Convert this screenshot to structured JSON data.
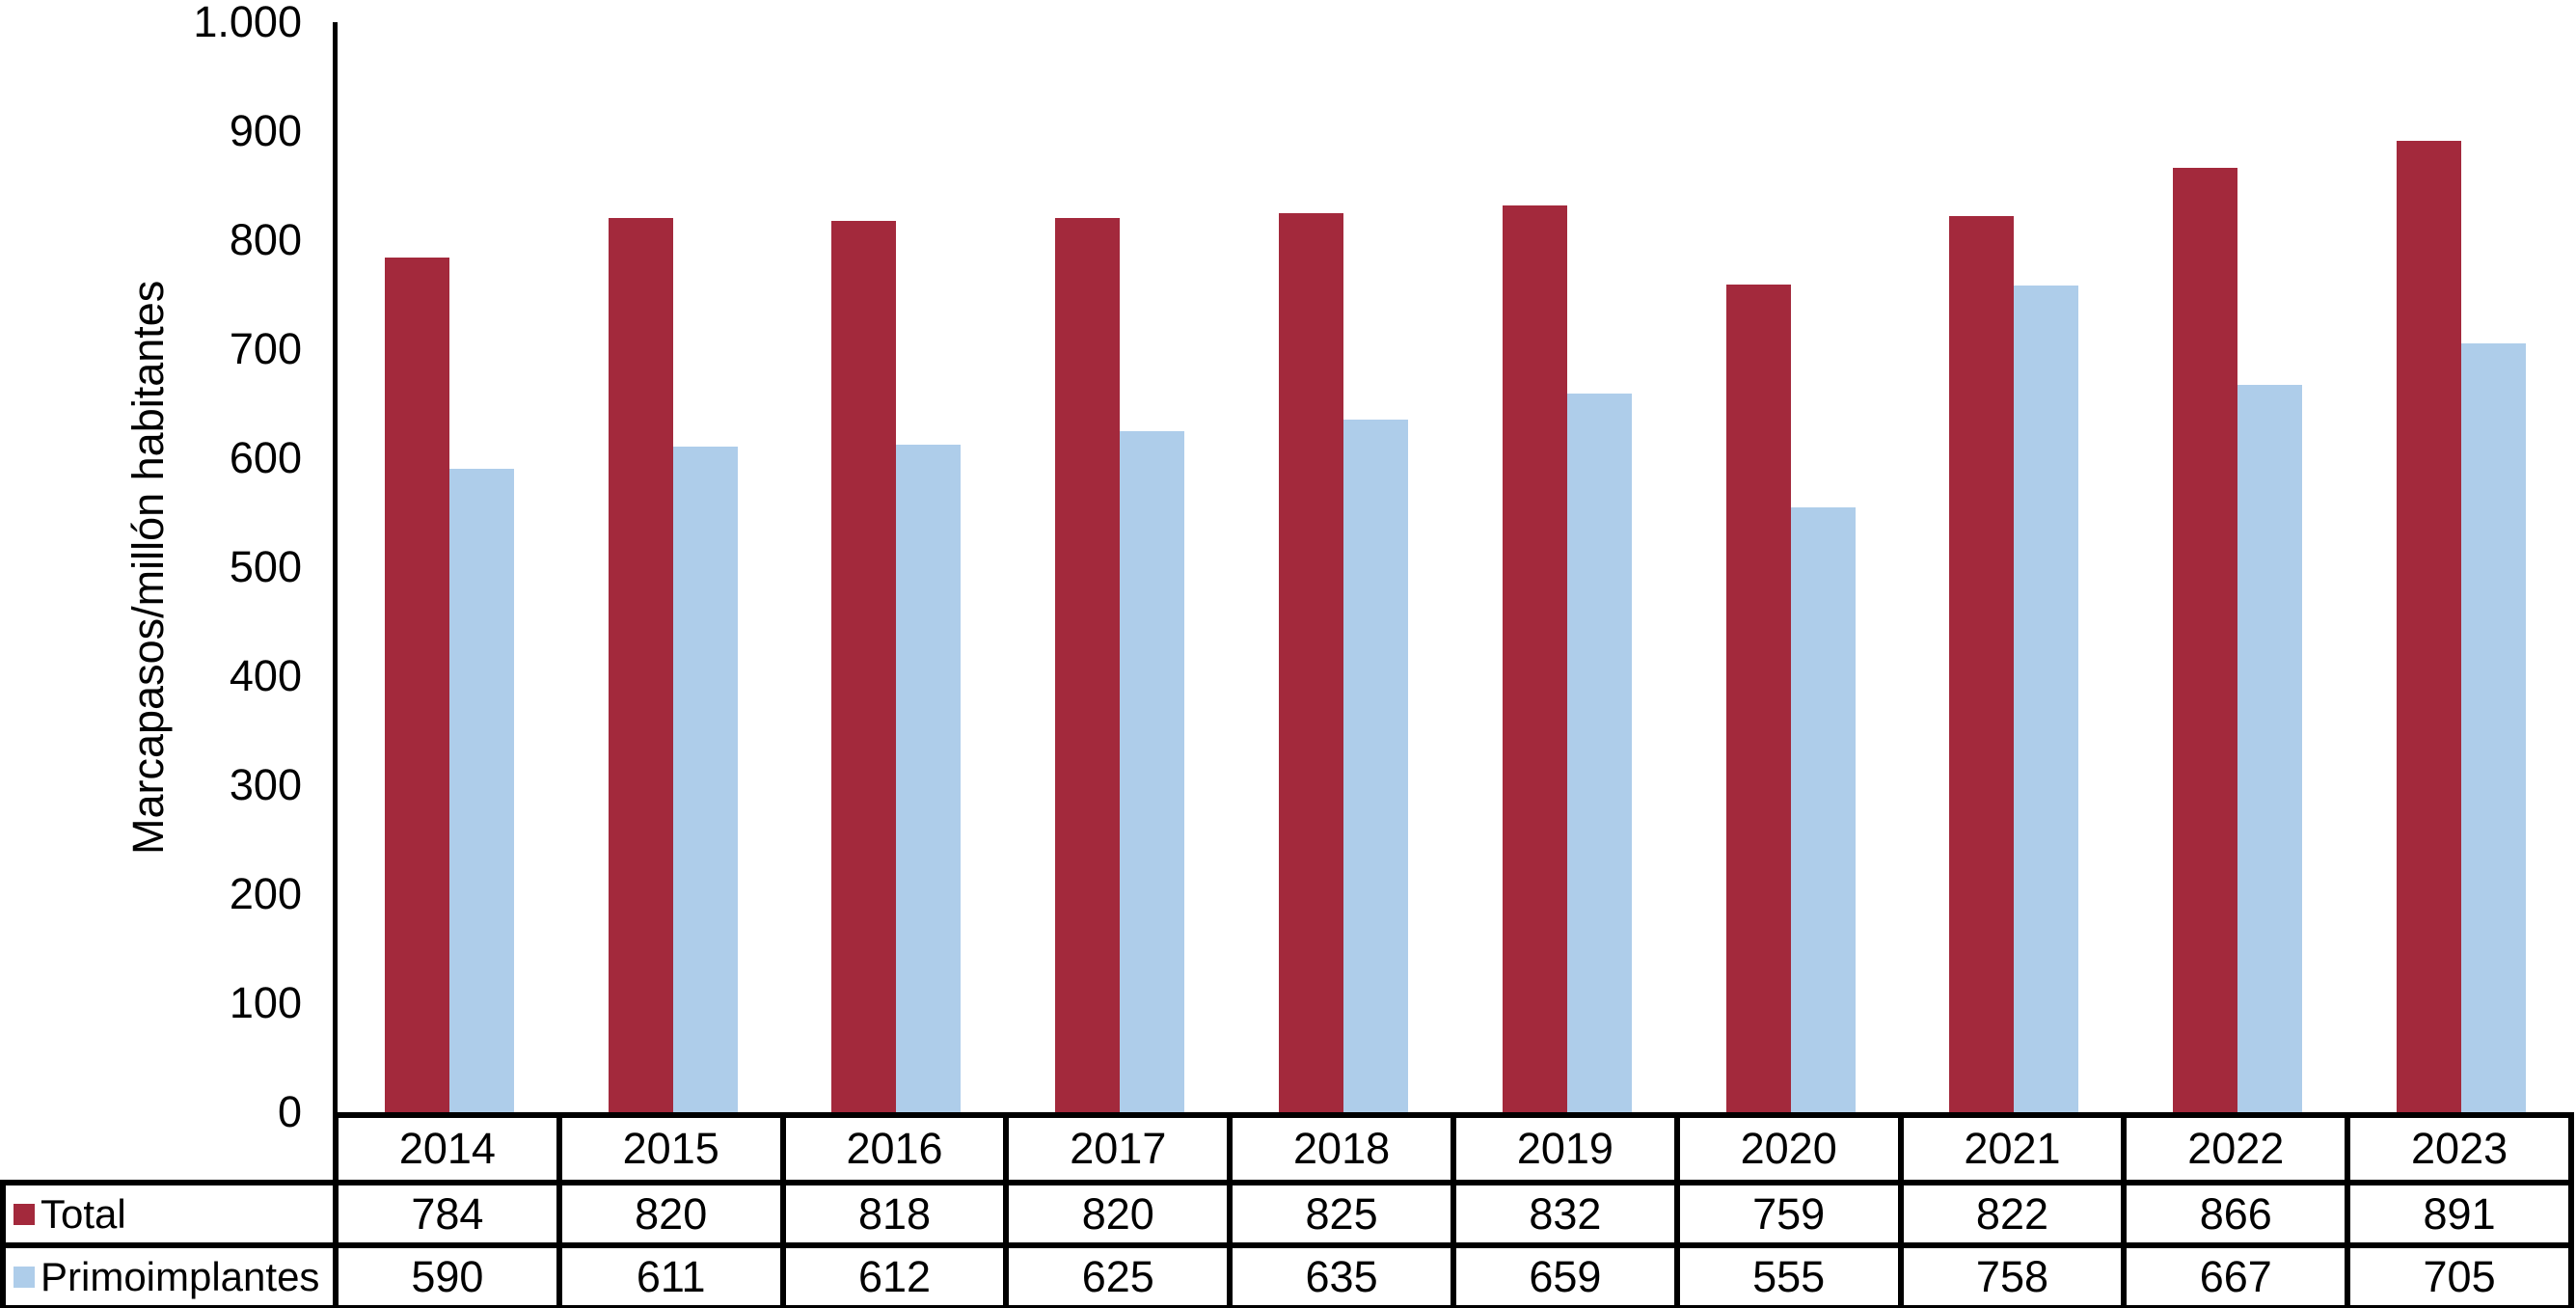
{
  "chart_data": {
    "type": "bar",
    "title": "",
    "xlabel": "",
    "ylabel": "Marcapasos/millón habitantes",
    "ylim": [
      0,
      1000
    ],
    "ytick_step": 100,
    "ytick_labels": [
      "1.000",
      "900",
      "800",
      "700",
      "600",
      "500",
      "400",
      "300",
      "200",
      "100",
      "0"
    ],
    "categories": [
      "2014",
      "2015",
      "2016",
      "2017",
      "2018",
      "2019",
      "2020",
      "2021",
      "2022",
      "2023"
    ],
    "series": [
      {
        "name": "Total",
        "color": "#A3293C",
        "values": [
          784,
          820,
          818,
          820,
          825,
          832,
          759,
          822,
          866,
          891
        ]
      },
      {
        "name": "Primoimplantes",
        "color": "#AECDEA",
        "values": [
          590,
          611,
          612,
          625,
          635,
          659,
          555,
          758,
          667,
          705
        ]
      }
    ],
    "grid": false,
    "legend_position": "table-left",
    "axis_color": "#000000",
    "table_border_color": "#000000",
    "background_color": "#FFFFFF"
  }
}
